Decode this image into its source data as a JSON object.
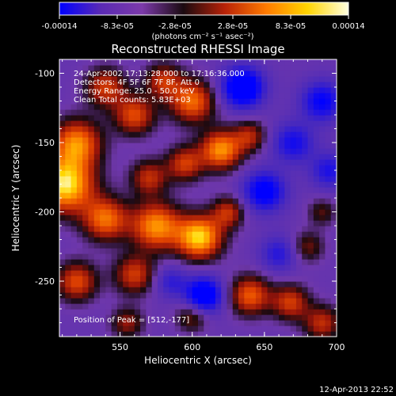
{
  "chart_data": {
    "type": "heatmap",
    "title": "Reconstructed RHESSI Image",
    "xlabel": "Heliocentric X (arcsec)",
    "ylabel": "Heliocentric Y (arcsec)",
    "xlim": [
      508,
      700
    ],
    "ylim": [
      -290,
      -90
    ],
    "xticks": [
      550,
      600,
      650,
      700
    ],
    "yticks": [
      -100,
      -150,
      -200,
      -250
    ],
    "xtick_labels": [
      "550",
      "600",
      "650",
      "700"
    ],
    "ytick_labels": [
      "-100",
      "-150",
      "-200",
      "-250"
    ],
    "colorbar": {
      "range": [
        -0.00014,
        0.00014
      ],
      "tick_labels": [
        "-0.00014",
        "-8.3e-05",
        "-2.8e-05",
        "2.8e-05",
        "8.3e-05",
        "0.00014"
      ],
      "units": "(photons cm⁻² s⁻¹ asec⁻²)",
      "colors": [
        "#0000ff",
        "#5a2ab4",
        "#7c3aaa",
        "#1a0a10",
        "#b82208",
        "#ff7a00",
        "#ffd400",
        "#ffffe0"
      ]
    },
    "info_lines": [
      "24-Apr-2002 17:13:28.000 to 17:16:36.000",
      "Detectors: 4F 5F 6F 7F 8F, Att 0",
      "Energy Range: 25.0 - 50.0 keV",
      "Clean     Total counts: 5.83E+03"
    ],
    "peak_label": "Position of Peak = [512,-177]",
    "peak": [
      512,
      -177
    ],
    "blobs": [
      {
        "x": 512,
        "y": -180,
        "v": 1.0,
        "r": 14
      },
      {
        "x": 520,
        "y": -150,
        "v": 0.75,
        "r": 12
      },
      {
        "x": 540,
        "y": -110,
        "v": 0.55,
        "r": 10
      },
      {
        "x": 560,
        "y": -130,
        "v": 0.6,
        "r": 10
      },
      {
        "x": 580,
        "y": -105,
        "v": 0.5,
        "r": 9
      },
      {
        "x": 600,
        "y": -120,
        "v": 0.7,
        "r": 11
      },
      {
        "x": 570,
        "y": -175,
        "v": 0.5,
        "r": 9
      },
      {
        "x": 595,
        "y": -165,
        "v": 0.55,
        "r": 9
      },
      {
        "x": 620,
        "y": -155,
        "v": 0.8,
        "r": 10
      },
      {
        "x": 640,
        "y": -145,
        "v": 0.45,
        "r": 8
      },
      {
        "x": 540,
        "y": -205,
        "v": 0.7,
        "r": 11
      },
      {
        "x": 575,
        "y": -210,
        "v": 0.8,
        "r": 12
      },
      {
        "x": 605,
        "y": -218,
        "v": 0.95,
        "r": 11
      },
      {
        "x": 625,
        "y": -200,
        "v": 0.5,
        "r": 8
      },
      {
        "x": 560,
        "y": -245,
        "v": 0.55,
        "r": 10
      },
      {
        "x": 520,
        "y": -250,
        "v": 0.6,
        "r": 10
      },
      {
        "x": 640,
        "y": -260,
        "v": 0.65,
        "r": 10
      },
      {
        "x": 668,
        "y": -265,
        "v": 0.55,
        "r": 9
      },
      {
        "x": 690,
        "y": -280,
        "v": 0.5,
        "r": 9
      },
      {
        "x": 680,
        "y": -225,
        "v": 0.35,
        "r": 8
      },
      {
        "x": 690,
        "y": -200,
        "v": 0.3,
        "r": 7
      },
      {
        "x": 600,
        "y": -275,
        "v": 0.4,
        "r": 8
      },
      {
        "x": 555,
        "y": -280,
        "v": 0.4,
        "r": 8
      },
      {
        "x": 635,
        "y": -110,
        "v": -0.9,
        "r": 10
      },
      {
        "x": 650,
        "y": -185,
        "v": -0.7,
        "r": 10
      },
      {
        "x": 690,
        "y": -120,
        "v": -0.6,
        "r": 10
      },
      {
        "x": 608,
        "y": -260,
        "v": -0.85,
        "r": 9
      },
      {
        "x": 670,
        "y": -150,
        "v": -0.5,
        "r": 10
      },
      {
        "x": 695,
        "y": -170,
        "v": -0.45,
        "r": 9
      },
      {
        "x": 585,
        "y": -250,
        "v": -0.35,
        "r": 8
      },
      {
        "x": 660,
        "y": -230,
        "v": -0.4,
        "r": 9
      }
    ]
  },
  "footer": {
    "timestamp": "12-Apr-2013 22:52"
  }
}
